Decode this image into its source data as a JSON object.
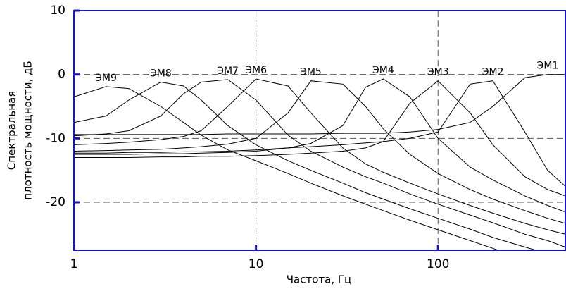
{
  "chart_data": {
    "type": "line",
    "log_x": true,
    "grid": true,
    "frame_color": "#1515c8",
    "xlabel": "Частота, Гц",
    "ylabel": [
      "Спектральная",
      "плотность мощности, дБ"
    ],
    "xlim": [
      1,
      500
    ],
    "ylim": [
      -27.5,
      10
    ],
    "xticks": [
      1,
      10,
      100
    ],
    "yticks": [
      10,
      0,
      -10,
      -20
    ],
    "x": [
      1,
      1.5,
      2,
      3,
      4,
      5,
      7,
      10,
      15,
      20,
      30,
      40,
      50,
      70,
      100,
      150,
      200,
      300,
      400,
      500
    ],
    "series": [
      {
        "name": "ЭМ9",
        "color": "#000000",
        "values": [
          -3.5,
          -1.9,
          -2.2,
          -5,
          -7.5,
          -9.5,
          -11.8,
          -13.5,
          -15.5,
          -17,
          -19,
          -20.3,
          -21.3,
          -22.8,
          -24.3,
          -26,
          -27.2,
          -29,
          -30,
          -31
        ]
      },
      {
        "name": "ЭМ8",
        "color": "#000000",
        "values": [
          -7.5,
          -6.5,
          -4,
          -1.2,
          -1.8,
          -4,
          -8,
          -11,
          -13.5,
          -15,
          -17,
          -18.5,
          -19.5,
          -21,
          -22.5,
          -24.2,
          -25.5,
          -27,
          -28,
          -29
        ]
      },
      {
        "name": "ЭМ7",
        "color": "#000000",
        "values": [
          -9.6,
          -9.3,
          -8.8,
          -6.5,
          -3,
          -1.2,
          -0.8,
          -4,
          -9.5,
          -12,
          -14.5,
          -16,
          -17,
          -18.7,
          -20.3,
          -22,
          -23.2,
          -25,
          -26,
          -27
        ]
      },
      {
        "name": "ЭМ6",
        "color": "#000000",
        "values": [
          -11,
          -10.8,
          -10.6,
          -10.2,
          -9.7,
          -8.8,
          -5,
          -0.7,
          -1.8,
          -6,
          -11.5,
          -14,
          -15.3,
          -17,
          -18.7,
          -20.5,
          -21.7,
          -23.3,
          -24.3,
          -25
        ]
      },
      {
        "name": "ЭМ5",
        "color": "#000000",
        "values": [
          -12,
          -11.9,
          -11.8,
          -11.7,
          -11.5,
          -11.3,
          -10.9,
          -10,
          -6,
          -1,
          -1.5,
          -5,
          -8.5,
          -12.5,
          -15.5,
          -18,
          -19.5,
          -21.3,
          -22.5,
          -23.3
        ]
      },
      {
        "name": "ЭМ4",
        "color": "#000000",
        "values": [
          -12.5,
          -12.5,
          -12.5,
          -12.4,
          -12.4,
          -12.3,
          -12.2,
          -12,
          -11.5,
          -10.8,
          -8,
          -2,
          -0.7,
          -3.5,
          -10,
          -14.5,
          -16.5,
          -19,
          -20.5,
          -21.5
        ]
      },
      {
        "name": "ЭМ3",
        "color": "#000000",
        "values": [
          -13,
          -13,
          -13,
          -12.9,
          -12.9,
          -12.8,
          -12.8,
          -12.7,
          -12.5,
          -12.3,
          -12,
          -11.5,
          -10.5,
          -4.5,
          -1,
          -6,
          -11,
          -16,
          -18,
          -19
        ]
      },
      {
        "name": "ЭМ2",
        "color": "#000000",
        "values": [
          -12.3,
          -12.3,
          -12.2,
          -12.2,
          -12.1,
          -12.1,
          -12,
          -11.8,
          -11.5,
          -11.3,
          -11,
          -10.7,
          -10.5,
          -10,
          -9,
          -1.5,
          -1,
          -9,
          -15,
          -17.5
        ]
      },
      {
        "name": "ЭМ1",
        "color": "#000000",
        "values": [
          -9.4,
          -9.4,
          -9.4,
          -9.4,
          -9.4,
          -9.4,
          -9.3,
          -9.3,
          -9.3,
          -9.3,
          -9.2,
          -9.2,
          -9.2,
          -9,
          -8.6,
          -7.5,
          -5,
          -0.5,
          0,
          0
        ]
      }
    ]
  }
}
